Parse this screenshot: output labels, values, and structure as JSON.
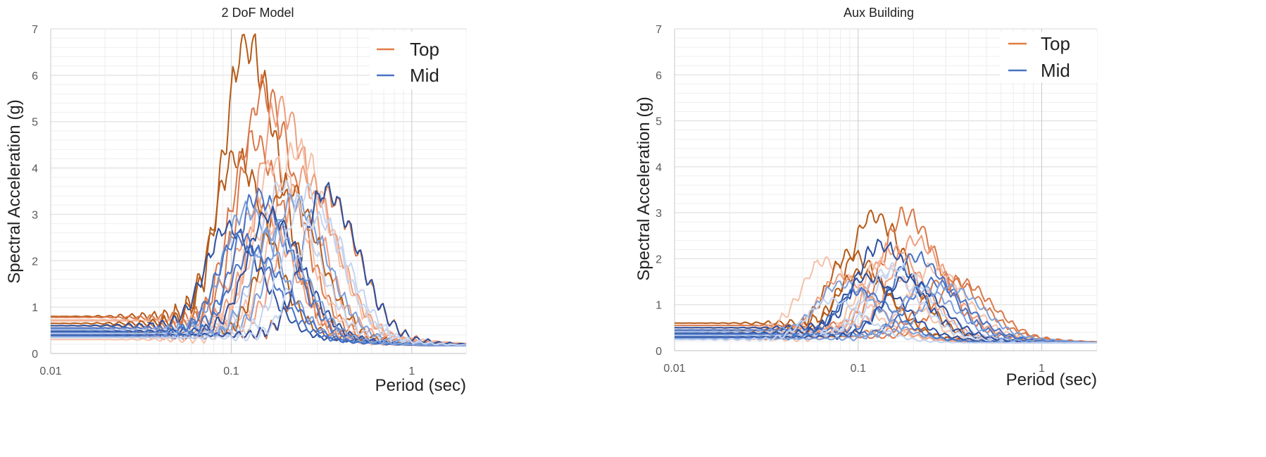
{
  "chart_data": [
    {
      "type": "line",
      "title": "2 DoF Model",
      "xlabel": "Period (sec)",
      "ylabel": "Spectral Acceleration (g)",
      "xscale": "log",
      "xlim": [
        0.01,
        2
      ],
      "ylim": [
        0,
        7
      ],
      "yticks": [
        "0",
        "1",
        "2",
        "3",
        "4",
        "5",
        "6",
        "7"
      ],
      "xticks": [
        "0.01",
        "0.1",
        "1"
      ],
      "grid": true,
      "legend": {
        "position": "top-right",
        "entries": [
          "Top",
          "Mid"
        ]
      },
      "series_colors": {
        "Top": [
          "#b55a17",
          "#d9784a",
          "#ee9e7d",
          "#f5c1aa"
        ],
        "Mid": [
          "#2c4f9e",
          "#4673c6",
          "#7d9fd9",
          "#c6d4ef"
        ]
      },
      "series": [
        {
          "name": "Top",
          "pga": 0.8,
          "peak_period": 0.12,
          "peak_sa": 6.7
        },
        {
          "name": "Top",
          "pga": 0.78,
          "peak_period": 0.15,
          "peak_sa": 5.65
        },
        {
          "name": "Top",
          "pga": 0.72,
          "peak_period": 0.185,
          "peak_sa": 5.35
        },
        {
          "name": "Top",
          "pga": 0.7,
          "peak_period": 0.23,
          "peak_sa": 4.4
        },
        {
          "name": "Top",
          "pga": 0.65,
          "peak_period": 0.105,
          "peak_sa": 4.2
        },
        {
          "name": "Top",
          "pga": 0.6,
          "peak_period": 0.13,
          "peak_sa": 4.6
        },
        {
          "name": "Top",
          "pga": 0.55,
          "peak_period": 0.25,
          "peak_sa": 3.8
        },
        {
          "name": "Top",
          "pga": 0.5,
          "peak_period": 0.17,
          "peak_sa": 4.1
        },
        {
          "name": "Top",
          "pga": 0.45,
          "peak_period": 0.2,
          "peak_sa": 3.6
        },
        {
          "name": "Top",
          "pga": 0.4,
          "peak_period": 0.33,
          "peak_sa": 3.45
        },
        {
          "name": "Top",
          "pga": 0.35,
          "peak_period": 0.14,
          "peak_sa": 3.2
        },
        {
          "name": "Top",
          "pga": 0.3,
          "peak_period": 0.16,
          "peak_sa": 2.8
        },
        {
          "name": "Mid",
          "pga": 0.6,
          "peak_period": 0.095,
          "peak_sa": 2.7
        },
        {
          "name": "Mid",
          "pga": 0.55,
          "peak_period": 0.14,
          "peak_sa": 3.4
        },
        {
          "name": "Mid",
          "pga": 0.52,
          "peak_period": 0.12,
          "peak_sa": 3.1
        },
        {
          "name": "Mid",
          "pga": 0.5,
          "peak_period": 0.19,
          "peak_sa": 3.6
        },
        {
          "name": "Mid",
          "pga": 0.48,
          "peak_period": 0.16,
          "peak_sa": 3.0
        },
        {
          "name": "Mid",
          "pga": 0.46,
          "peak_period": 0.11,
          "peak_sa": 2.5
        },
        {
          "name": "Mid",
          "pga": 0.44,
          "peak_period": 0.22,
          "peak_sa": 3.3
        },
        {
          "name": "Mid",
          "pga": 0.42,
          "peak_period": 0.26,
          "peak_sa": 3.5
        },
        {
          "name": "Mid",
          "pga": 0.4,
          "peak_period": 0.33,
          "peak_sa": 3.5
        },
        {
          "name": "Mid",
          "pga": 0.38,
          "peak_period": 0.13,
          "peak_sa": 2.2
        },
        {
          "name": "Mid",
          "pga": 0.36,
          "peak_period": 0.17,
          "peak_sa": 2.6
        },
        {
          "name": "Mid",
          "pga": 0.34,
          "peak_period": 0.3,
          "peak_sa": 2.9
        }
      ]
    },
    {
      "type": "line",
      "title": "Aux Building",
      "xlabel": "Period (sec)",
      "ylabel": "Spectral Acceleration (g)",
      "xscale": "log",
      "xlim": [
        0.01,
        2
      ],
      "ylim": [
        0,
        7
      ],
      "yticks": [
        "0",
        "1",
        "2",
        "3",
        "4",
        "5",
        "6",
        "7"
      ],
      "xticks": [
        "0.01",
        "0.1",
        "1"
      ],
      "grid": true,
      "legend": {
        "position": "top-right",
        "entries": [
          "Top",
          "Mid"
        ]
      },
      "series_colors": {
        "Top": [
          "#b55a17",
          "#d9784a",
          "#ee9e7d",
          "#f5c1aa"
        ],
        "Mid": [
          "#2c4f9e",
          "#4673c6",
          "#7d9fd9",
          "#c6d4ef"
        ]
      },
      "series": [
        {
          "name": "Top",
          "pga": 0.6,
          "peak_period": 0.12,
          "peak_sa": 2.95
        },
        {
          "name": "Top",
          "pga": 0.55,
          "peak_period": 0.18,
          "peak_sa": 2.95
        },
        {
          "name": "Top",
          "pga": 0.5,
          "peak_period": 0.2,
          "peak_sa": 2.4
        },
        {
          "name": "Top",
          "pga": 0.45,
          "peak_period": 0.065,
          "peak_sa": 1.95
        },
        {
          "name": "Top",
          "pga": 0.42,
          "peak_period": 0.09,
          "peak_sa": 2.1
        },
        {
          "name": "Top",
          "pga": 0.4,
          "peak_period": 0.3,
          "peak_sa": 1.6
        },
        {
          "name": "Top",
          "pga": 0.38,
          "peak_period": 0.15,
          "peak_sa": 2.2
        },
        {
          "name": "Top",
          "pga": 0.35,
          "peak_period": 0.25,
          "peak_sa": 1.8
        },
        {
          "name": "Top",
          "pga": 0.32,
          "peak_period": 0.1,
          "peak_sa": 1.7
        },
        {
          "name": "Top",
          "pga": 0.3,
          "peak_period": 0.35,
          "peak_sa": 1.5
        },
        {
          "name": "Top",
          "pga": 0.28,
          "peak_period": 0.08,
          "peak_sa": 1.6
        },
        {
          "name": "Top",
          "pga": 0.25,
          "peak_period": 0.13,
          "peak_sa": 1.9
        },
        {
          "name": "Mid",
          "pga": 0.5,
          "peak_period": 0.13,
          "peak_sa": 2.3
        },
        {
          "name": "Mid",
          "pga": 0.45,
          "peak_period": 0.2,
          "peak_sa": 2.05
        },
        {
          "name": "Mid",
          "pga": 0.42,
          "peak_period": 0.08,
          "peak_sa": 1.45
        },
        {
          "name": "Mid",
          "pga": 0.4,
          "peak_period": 0.16,
          "peak_sa": 1.8
        },
        {
          "name": "Mid",
          "pga": 0.38,
          "peak_period": 0.11,
          "peak_sa": 1.6
        },
        {
          "name": "Mid",
          "pga": 0.36,
          "peak_period": 0.25,
          "peak_sa": 1.5
        },
        {
          "name": "Mid",
          "pga": 0.34,
          "peak_period": 0.3,
          "peak_sa": 1.4
        },
        {
          "name": "Mid",
          "pga": 0.32,
          "peak_period": 0.14,
          "peak_sa": 1.7
        },
        {
          "name": "Mid",
          "pga": 0.3,
          "peak_period": 0.18,
          "peak_sa": 1.55
        },
        {
          "name": "Mid",
          "pga": 0.28,
          "peak_period": 0.1,
          "peak_sa": 1.3
        },
        {
          "name": "Mid",
          "pga": 0.26,
          "peak_period": 0.22,
          "peak_sa": 1.35
        },
        {
          "name": "Mid",
          "pga": 0.24,
          "peak_period": 0.07,
          "peak_sa": 1.1
        }
      ]
    }
  ]
}
